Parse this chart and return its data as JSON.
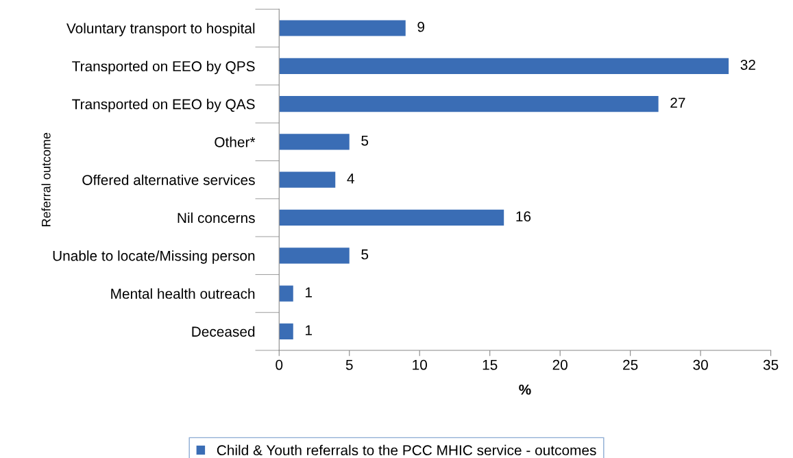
{
  "chart_data": {
    "type": "bar",
    "orientation": "horizontal",
    "xlabel": "%",
    "ylabel": "Referral outcome",
    "categories": [
      "Voluntary transport to hospital",
      "Transported on EEO by QPS",
      "Transported on EEO by QAS",
      "Other*",
      "Offered alternative services",
      "Nil concerns",
      "Unable to locate/Missing person",
      "Mental health outreach",
      "Deceased"
    ],
    "series": [
      {
        "name": "Child & Youth referrals to the PCC MHIC service - outcomes",
        "color": "#3a6db5",
        "values": [
          9,
          32,
          27,
          5,
          4,
          16,
          5,
          1,
          1
        ]
      }
    ],
    "xlim": [
      0,
      35
    ],
    "xticks": [
      0,
      5,
      10,
      15,
      20,
      25,
      30,
      35
    ],
    "data_labels": true,
    "grid": false,
    "legend": "bottom"
  }
}
